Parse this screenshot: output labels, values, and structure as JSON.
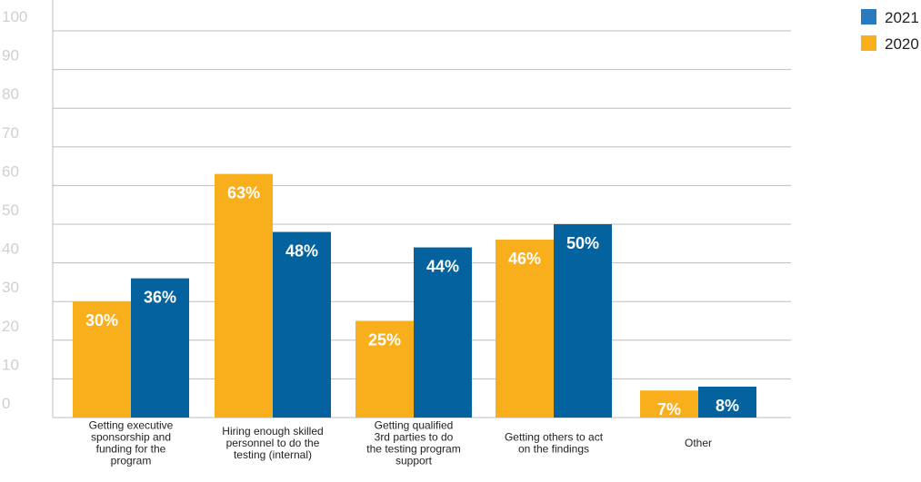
{
  "chart_data": {
    "type": "bar",
    "title": "",
    "xlabel": "",
    "ylabel": "",
    "ylim": [
      0,
      100
    ],
    "yticks": [
      "0",
      "10",
      "20",
      "30",
      "40",
      "50",
      "60",
      "70",
      "80",
      "90",
      "100"
    ],
    "grid": true,
    "legend_position": "top-right",
    "categories": [
      [
        "Getting executive",
        "sponsorship and",
        "funding for the",
        "program"
      ],
      [
        "Hiring enough skilled",
        "personnel to do the",
        "testing (internal)"
      ],
      [
        "Getting qualified",
        "3rd parties to do",
        "the testing program",
        "support"
      ],
      [
        "Getting others to act",
        "on the findings"
      ],
      [
        "Other"
      ]
    ],
    "series": [
      {
        "name": "2020",
        "color": "#f9ae1c",
        "values": [
          30,
          63,
          25,
          46,
          7
        ],
        "labels": [
          "30%",
          "63%",
          "25%",
          "46%",
          "7%"
        ]
      },
      {
        "name": "2021",
        "color": "#04639e",
        "values": [
          36,
          48,
          44,
          50,
          8
        ],
        "labels": [
          "36%",
          "48%",
          "44%",
          "50%",
          "8%"
        ]
      }
    ],
    "legend": [
      {
        "name": "2021",
        "color": "#2a7ac0"
      },
      {
        "name": "2020",
        "color": "#f9ae1c"
      }
    ],
    "colors": {
      "grid": "#bdbdbd",
      "tick_text": "#cfcfcf",
      "axis_text": "#222222",
      "bar_label": "#ffffff"
    }
  }
}
